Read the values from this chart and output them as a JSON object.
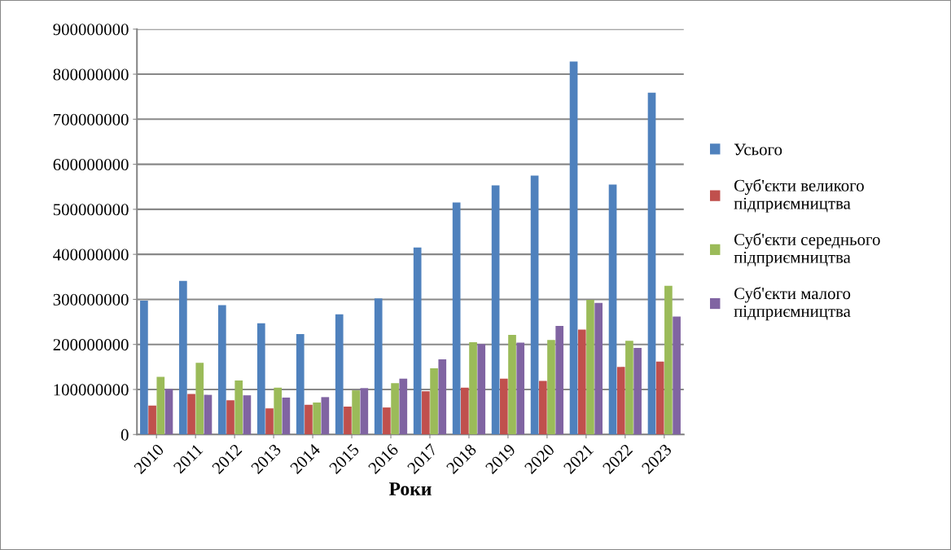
{
  "chart_data": {
    "type": "bar",
    "xlabel": "Роки",
    "categories": [
      "2010",
      "2011",
      "2012",
      "2013",
      "2014",
      "2015",
      "2016",
      "2017",
      "2018",
      "2019",
      "2020",
      "2021",
      "2022",
      "2023"
    ],
    "series": [
      {
        "name": "Усього",
        "color": "#4f81bd",
        "values": [
          297000000,
          341000000,
          287000000,
          247000000,
          223000000,
          267000000,
          302000000,
          415000000,
          515000000,
          553000000,
          575000000,
          828000000,
          555000000,
          759000000
        ]
      },
      {
        "name": "Суб'єкти великого\nпідприємництва",
        "color": "#c0504d",
        "values": [
          64000000,
          90000000,
          76000000,
          58000000,
          66000000,
          62000000,
          60000000,
          96000000,
          104000000,
          124000000,
          119000000,
          233000000,
          150000000,
          162000000
        ]
      },
      {
        "name": "Суб'єкти середнього\nпідприємництва",
        "color": "#9bbb59",
        "values": [
          128000000,
          159000000,
          120000000,
          104000000,
          71000000,
          98000000,
          114000000,
          147000000,
          205000000,
          221000000,
          210000000,
          299000000,
          208000000,
          330000000
        ]
      },
      {
        "name": "Суб'єкти малого\nпідприємництва",
        "color": "#8064a2",
        "values": [
          101000000,
          88000000,
          87000000,
          82000000,
          83000000,
          103000000,
          124000000,
          167000000,
          201000000,
          204000000,
          241000000,
          292000000,
          192000000,
          262000000
        ]
      }
    ],
    "ylim": [
      0,
      900000000
    ],
    "yticks": [
      0,
      100000000,
      200000000,
      300000000,
      400000000,
      500000000,
      600000000,
      700000000,
      800000000,
      900000000
    ],
    "grid": "y",
    "legend": "right"
  }
}
